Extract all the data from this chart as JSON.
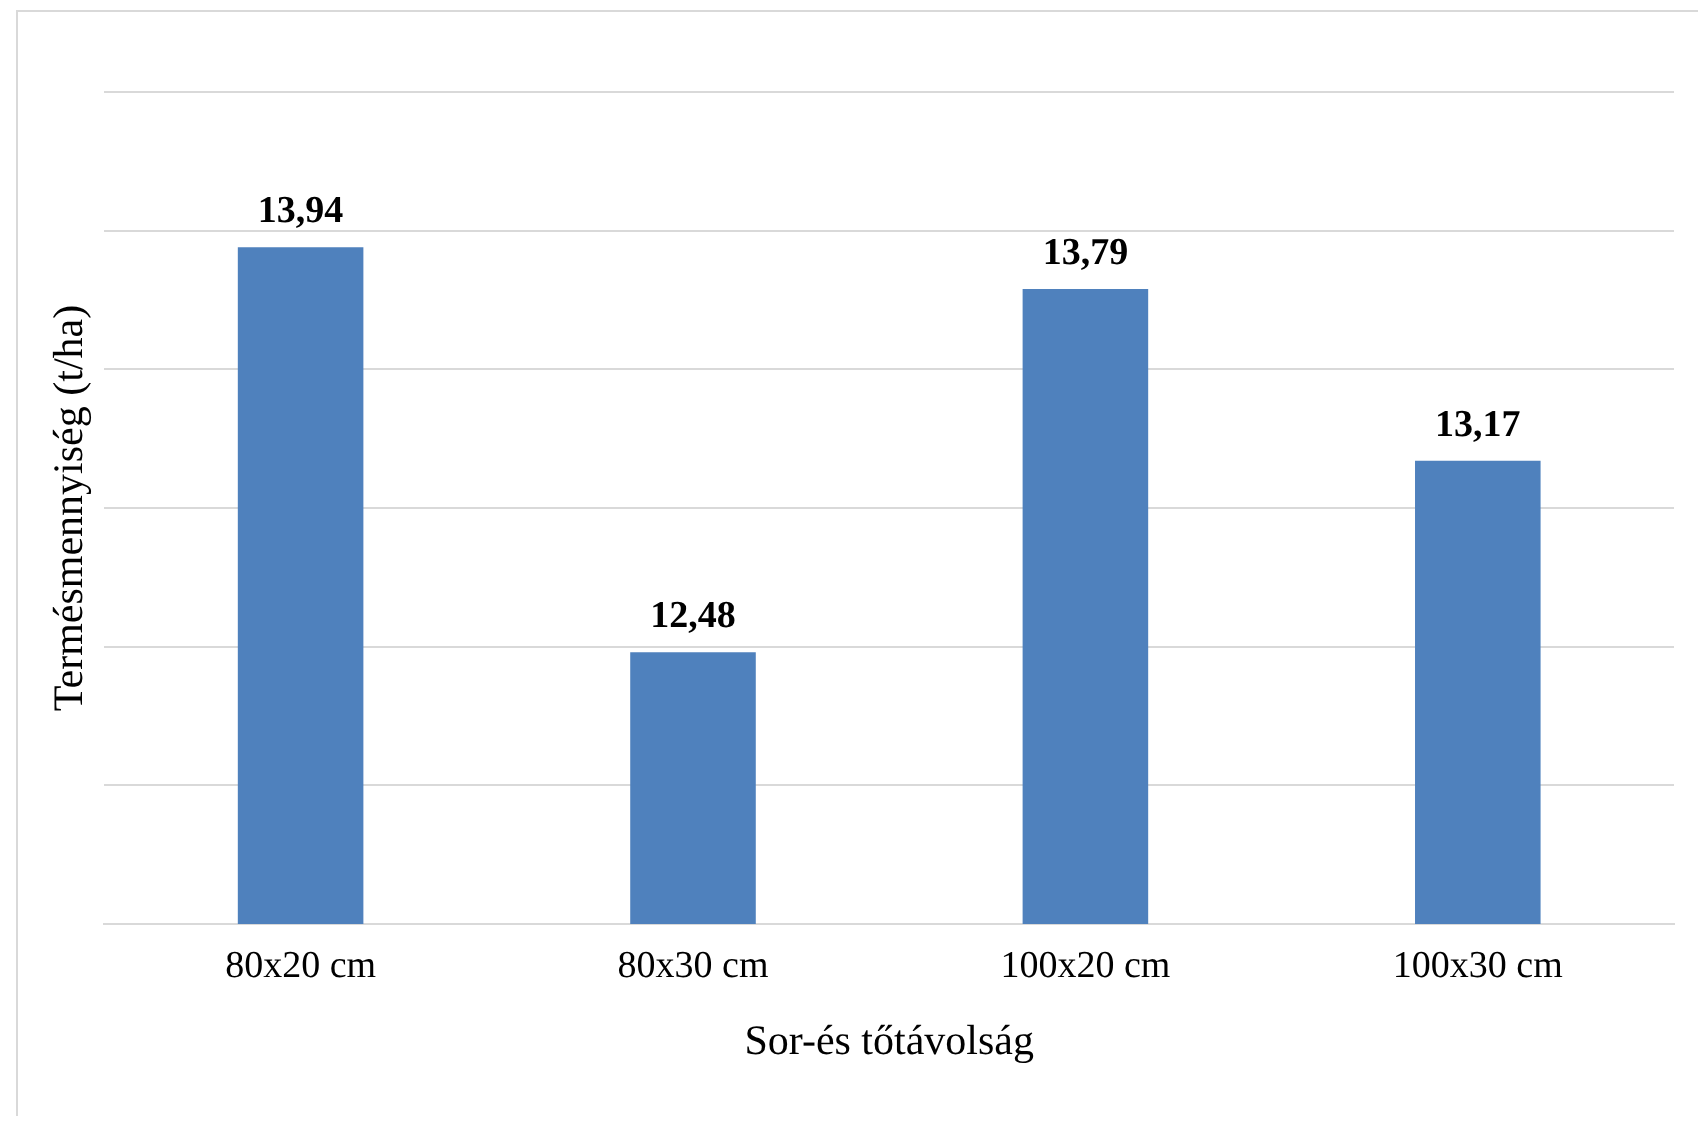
{
  "chart_data": {
    "type": "bar",
    "xlabel": "Sor-és tőtávolság",
    "ylabel": "Termésmennyiség (t/ha)",
    "categories": [
      "80x20 cm",
      "80x30 cm",
      "100x20 cm",
      "100x30 cm"
    ],
    "values": [
      13.94,
      12.48,
      13.79,
      13.17
    ],
    "value_labels": [
      "13,94",
      "12,48",
      "13,79",
      "13,17"
    ],
    "color": "#4f81bd",
    "ylim": [
      11.5,
      14.5
    ],
    "yticks": [
      {
        "value": 11.5,
        "label": null
      },
      {
        "value": 12,
        "label": null
      },
      {
        "value": 12.5,
        "label": null
      },
      {
        "value": 13,
        "label": null
      },
      {
        "value": 13.5,
        "label": null
      },
      {
        "value": 14,
        "label": null
      },
      {
        "value": 14.5,
        "label": null
      }
    ],
    "grid": "y",
    "tick_labels": "x"
  }
}
